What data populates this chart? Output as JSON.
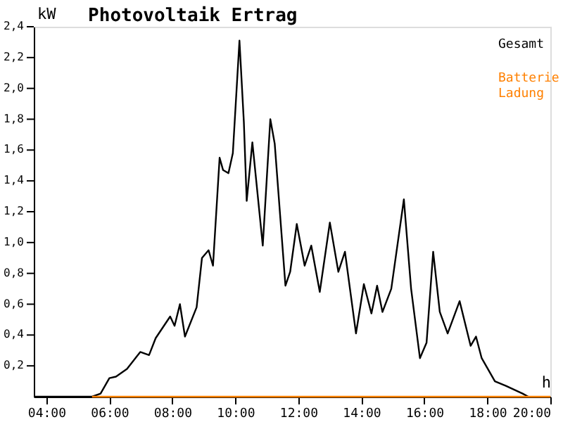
{
  "chart_data": {
    "type": "line",
    "title": "Photovoltaik Ertrag",
    "xlabel": "h",
    "ylabel": "kW",
    "series": [
      {
        "name": "Gesamt",
        "color": "#000000",
        "x": [
          3.6,
          5.45,
          5.72,
          6.0,
          6.21,
          6.56,
          6.98,
          7.26,
          7.47,
          7.93,
          8.07,
          8.24,
          8.4,
          8.77,
          8.94,
          9.15,
          9.29,
          9.5,
          9.61,
          9.78,
          9.92,
          10.13,
          10.27,
          10.36,
          10.54,
          10.87,
          11.11,
          11.25,
          11.59,
          11.74,
          11.95,
          12.2,
          12.41,
          12.68,
          13.0,
          13.27,
          13.48,
          13.83,
          14.08,
          14.32,
          14.5,
          14.67,
          14.95,
          15.35,
          15.58,
          15.86,
          16.07,
          16.28,
          16.49,
          16.74,
          17.12,
          17.47,
          17.64,
          17.82,
          18.24,
          18.59,
          19.12,
          19.3
        ],
        "values": [
          0,
          0,
          0.02,
          0.12,
          0.13,
          0.18,
          0.29,
          0.27,
          0.38,
          0.52,
          0.46,
          0.6,
          0.39,
          0.58,
          0.9,
          0.95,
          0.85,
          1.55,
          1.47,
          1.45,
          1.58,
          2.31,
          1.78,
          1.27,
          1.65,
          0.98,
          1.8,
          1.64,
          0.72,
          0.81,
          1.12,
          0.85,
          0.98,
          0.68,
          1.13,
          0.81,
          0.94,
          0.41,
          0.73,
          0.54,
          0.72,
          0.55,
          0.7,
          1.28,
          0.7,
          0.25,
          0.35,
          0.94,
          0.55,
          0.41,
          0.62,
          0.33,
          0.39,
          0.25,
          0.1,
          0.07,
          0.02,
          0
        ]
      },
      {
        "name": "Batterie Ladung",
        "color": "#ff8000",
        "x": [
          5.45,
          20
        ],
        "values": [
          0,
          0
        ]
      }
    ],
    "xlim": [
      3.6,
      20
    ],
    "ylim": [
      0,
      2.4
    ],
    "xticks": [
      {
        "value": 4,
        "label": "04:00"
      },
      {
        "value": 6,
        "label": "06:00"
      },
      {
        "value": 8,
        "label": "08:00"
      },
      {
        "value": 10,
        "label": "10:00"
      },
      {
        "value": 12,
        "label": "12:00"
      },
      {
        "value": 14,
        "label": "14:00"
      },
      {
        "value": 16,
        "label": "16:00"
      },
      {
        "value": 18,
        "label": "18:00"
      },
      {
        "value": 20,
        "label": "20:00"
      }
    ],
    "yticks": [
      {
        "value": 0.2,
        "label": "0,2"
      },
      {
        "value": 0.4,
        "label": "0,4"
      },
      {
        "value": 0.6,
        "label": "0,6"
      },
      {
        "value": 0.8,
        "label": "0,8"
      },
      {
        "value": 1.0,
        "label": "1,0"
      },
      {
        "value": 1.2,
        "label": "1,2"
      },
      {
        "value": 1.4,
        "label": "1,4"
      },
      {
        "value": 1.6,
        "label": "1,6"
      },
      {
        "value": 1.8,
        "label": "1,8"
      },
      {
        "value": 2.0,
        "label": "2,0"
      },
      {
        "value": 2.2,
        "label": "2,2"
      },
      {
        "value": 2.4,
        "label": "2,4"
      }
    ],
    "grid": false,
    "legend": "top right",
    "marker": "none",
    "line_style": "solid"
  }
}
